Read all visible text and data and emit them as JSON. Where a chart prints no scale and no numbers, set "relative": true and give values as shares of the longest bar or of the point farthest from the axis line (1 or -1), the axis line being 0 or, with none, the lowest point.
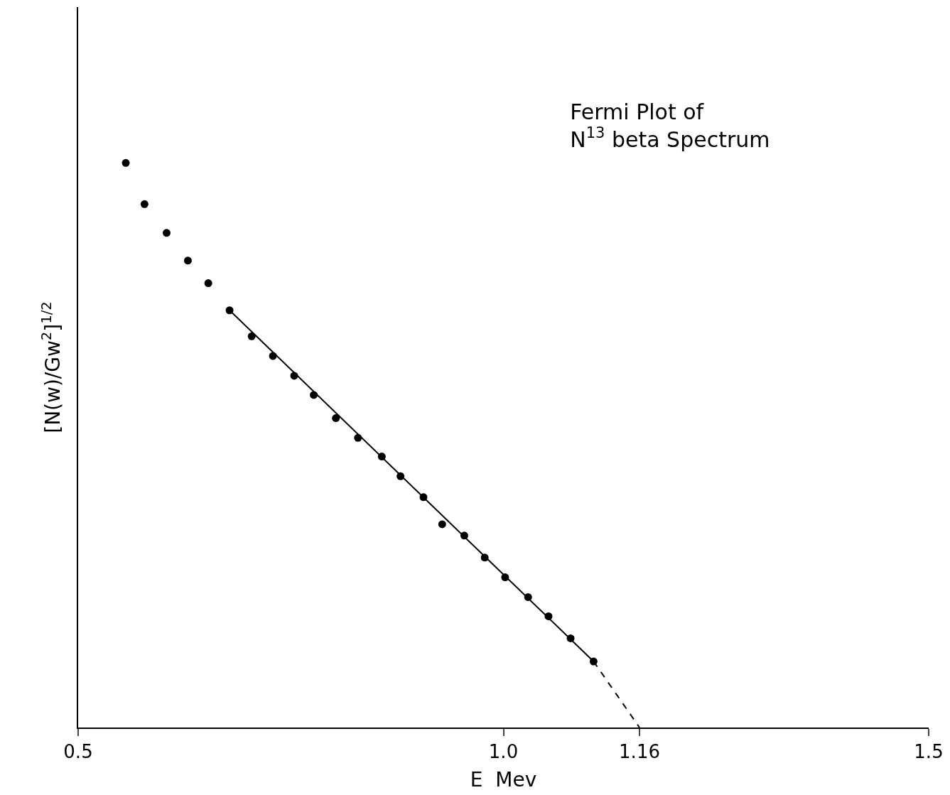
{
  "chart_data": {
    "type": "scatter",
    "title": "Fermi Plot of\nN$^{13}$ beta Spectrum",
    "xlabel": "E  Mev",
    "ylabel": "[N(w)/Gw$^{2}$]$^{1/2}$",
    "relative": true,
    "xlim": [
      0.5,
      1.5
    ],
    "xticks": [
      {
        "value": 0.5,
        "label": "0.5"
      },
      {
        "value": 1.0,
        "label": "1.0"
      },
      {
        "value": 1.16,
        "label": "1.16"
      },
      {
        "value": 1.5,
        "label": "1.5"
      }
    ],
    "marker": "circle",
    "series": [
      {
        "color": "#000000",
        "x": [
          0.556,
          0.578,
          0.604,
          0.629,
          0.653,
          0.678,
          0.704,
          0.729,
          0.754,
          0.777,
          0.803,
          0.829,
          0.857,
          0.879,
          0.906,
          0.928,
          0.954,
          0.978,
          1.002,
          1.029,
          1.053,
          1.079,
          1.106
        ],
        "values": [
          1.0,
          0.927,
          0.876,
          0.827,
          0.787,
          0.739,
          0.693,
          0.658,
          0.623,
          0.589,
          0.548,
          0.513,
          0.48,
          0.445,
          0.408,
          0.36,
          0.34,
          0.301,
          0.266,
          0.231,
          0.197,
          0.158,
          0.117
        ]
      },
      {
        "type": "line",
        "color": "#000000",
        "line_style": "solid",
        "marker": "none",
        "x": [
          0.678,
          1.106
        ],
        "values": [
          0.739,
          0.117
        ]
      },
      {
        "type": "line",
        "color": "#000000",
        "line_style": "dashed",
        "marker": "none",
        "x": [
          1.106,
          1.16
        ],
        "values": [
          0.117,
          0.0
        ]
      }
    ]
  }
}
